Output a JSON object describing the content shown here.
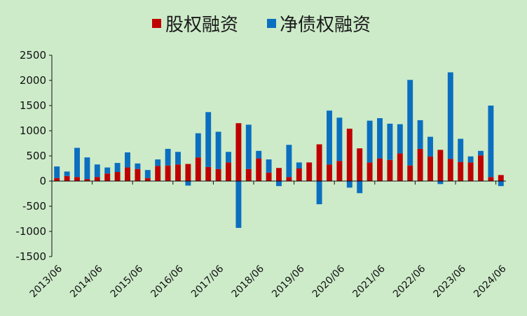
{
  "chart_data": {
    "type": "bar",
    "stacked": true,
    "title": "",
    "xlabel": "",
    "ylabel": "",
    "ylim": [
      -1500,
      2500
    ],
    "yticks": [
      2500,
      2000,
      1500,
      1000,
      500,
      0,
      -500,
      -1000,
      -1500
    ],
    "grid": false,
    "legend_position": "top-center",
    "xtick_labels": [
      "2013/06",
      "2014/06",
      "2015/06",
      "2016/06",
      "2017/06",
      "2018/06",
      "2019/06",
      "2020/06",
      "2021/06",
      "2022/06",
      "2023/06",
      "2024/06"
    ],
    "series": [
      {
        "name": "股权融资",
        "color": "#c00000",
        "values": [
          60,
          100,
          80,
          40,
          80,
          150,
          180,
          270,
          240,
          60,
          300,
          310,
          330,
          340,
          470,
          280,
          240,
          370,
          1150,
          240,
          450,
          170,
          260,
          80,
          250,
          370,
          730,
          330,
          400,
          1040,
          650,
          370,
          450,
          420,
          550,
          310,
          640,
          490,
          620,
          440,
          380,
          370,
          510,
          80,
          120
        ]
      },
      {
        "name": "净债权融资",
        "color": "#0b6fc0",
        "values": [
          230,
          90,
          580,
          430,
          250,
          120,
          180,
          300,
          110,
          160,
          130,
          330,
          250,
          -90,
          480,
          1090,
          740,
          210,
          -930,
          880,
          150,
          260,
          -100,
          640,
          120,
          0,
          -460,
          1070,
          860,
          -130,
          -240,
          830,
          800,
          720,
          580,
          1700,
          570,
          390,
          -60,
          1720,
          460,
          120,
          90,
          1420,
          -100
        ]
      }
    ]
  }
}
